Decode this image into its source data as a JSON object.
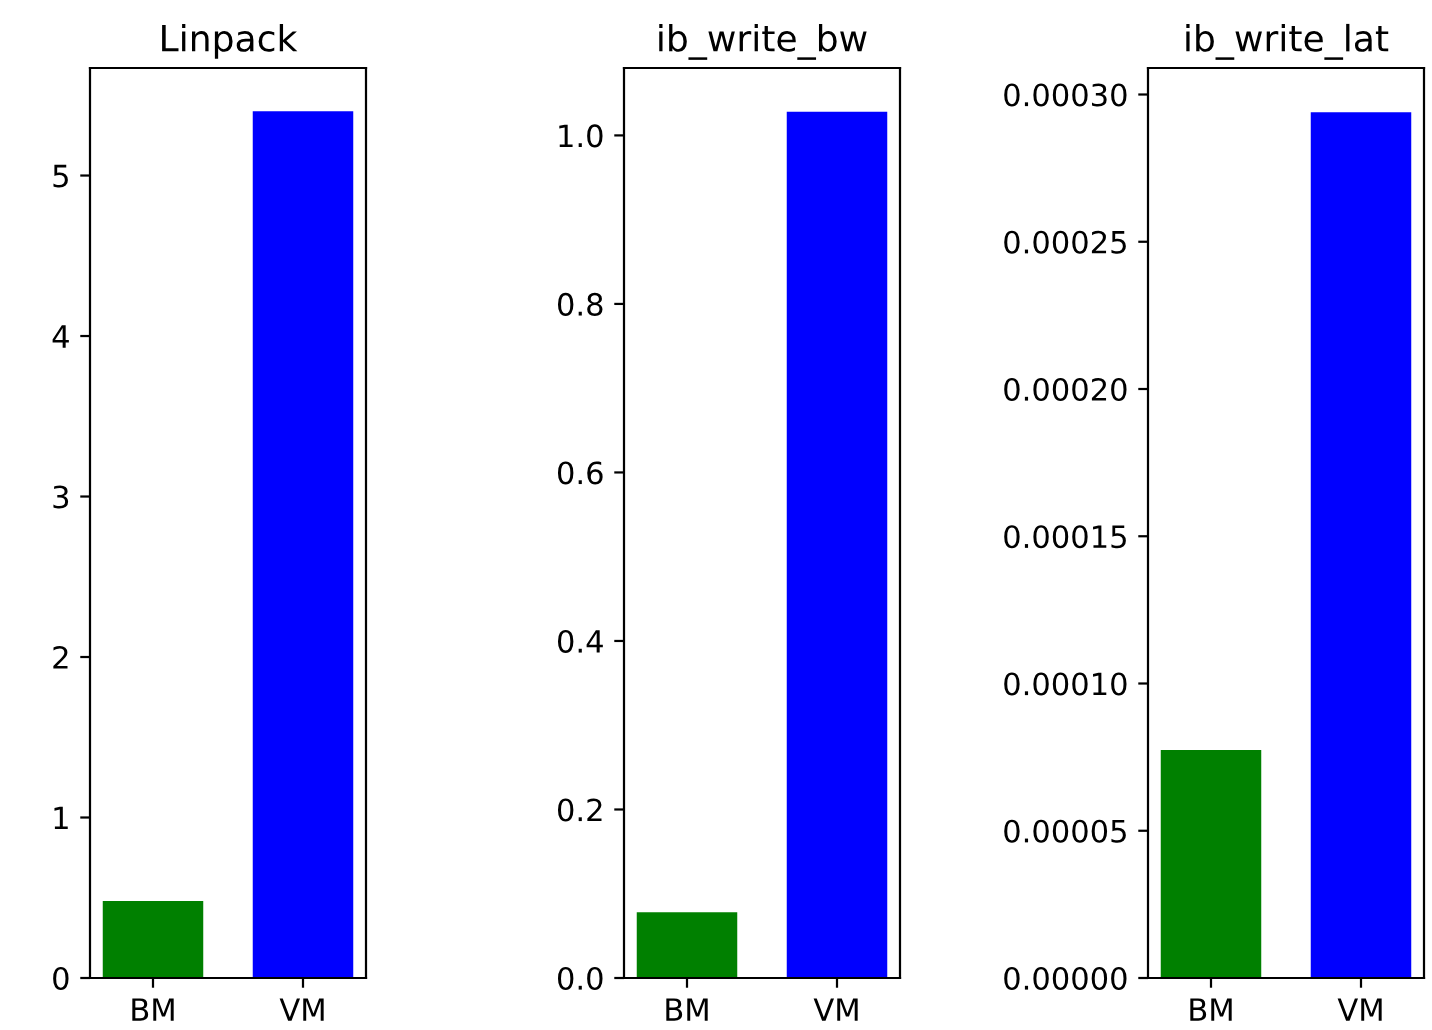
{
  "chart_data": [
    {
      "type": "bar",
      "title": "Linpack",
      "categories": [
        "BM",
        "VM"
      ],
      "values": [
        0.48,
        5.4
      ],
      "colors": [
        "#008000",
        "#0000ff"
      ],
      "ylim": [
        0,
        5.67
      ],
      "yticks": [
        0,
        1,
        2,
        3,
        4,
        5
      ],
      "grid": false
    },
    {
      "type": "bar",
      "title": "ib_write_bw",
      "categories": [
        "BM",
        "VM"
      ],
      "values": [
        0.078,
        1.028
      ],
      "colors": [
        "#008000",
        "#0000ff"
      ],
      "ylim": [
        0,
        1.08
      ],
      "yticks": [
        {
          "value": 0,
          "label": "0.0"
        },
        0.2,
        0.4,
        0.6,
        0.8,
        {
          "value": 1,
          "label": "1.0"
        }
      ],
      "grid": false
    },
    {
      "type": "bar",
      "title": "ib_write_lat",
      "categories": [
        "BM",
        "VM"
      ],
      "values": [
        7.74e-05,
        0.000294
      ],
      "colors": [
        "#008000",
        "#0000ff"
      ],
      "ylim": [
        0,
        0.000309
      ],
      "yticks": [
        {
          "value": 0,
          "label": "0.00000"
        },
        {
          "value": 5e-05,
          "label": "0.00005"
        },
        {
          "value": 0.0001,
          "label": "0.00010"
        },
        {
          "value": 0.00015,
          "label": "0.00015"
        },
        {
          "value": 0.0002,
          "label": "0.00020"
        },
        {
          "value": 0.00025,
          "label": "0.00025"
        },
        {
          "value": 0.0003,
          "label": "0.00030"
        }
      ],
      "grid": false
    }
  ]
}
